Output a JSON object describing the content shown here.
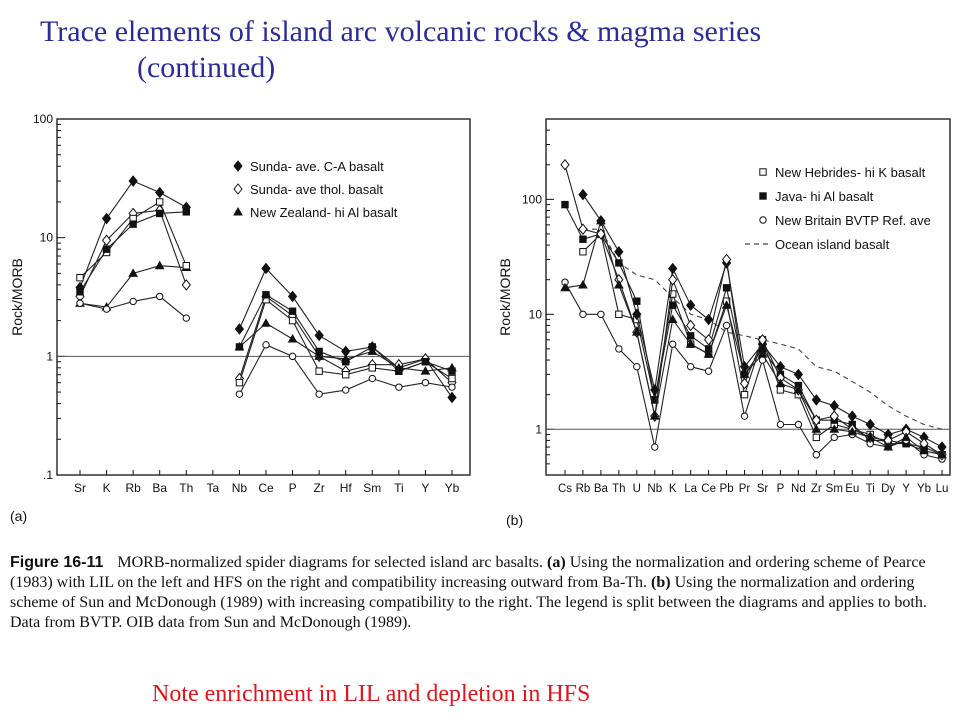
{
  "slide": {
    "title_line1": "Trace elements of island arc volcanic rocks & magma series",
    "title_line2": "(continued)",
    "note": "Note enrichment in LIL and depletion in HFS"
  },
  "caption": {
    "figure_label": "Figure 16-11",
    "intro": "MORB-normalized spider diagrams for selected island arc basalts.",
    "part_a_label": "(a)",
    "part_a_text": "Using the normalization and ordering scheme of Pearce (1983) with LIL on the left and HFS on the right and compatibility increasing outward from Ba-Th.",
    "part_b_label": "(b)",
    "part_b_text": "Using the normalization and ordering scheme of Sun and McDonough (1989) with increasing compatibility to the right. The legend is split between the diagrams and applies to both. Data from BVTP. OIB data from Sun and McDonough (1989)."
  },
  "colors": {
    "title": "#2b2b9b",
    "note": "#e0141c",
    "ink": "#111111"
  },
  "chart_data": [
    {
      "type": "line",
      "panel_label": "(a)",
      "ylabel": "Rock/MORB",
      "yscale": "log",
      "ylim": [
        0.1,
        100
      ],
      "yticks": [
        0.1,
        1,
        10,
        100
      ],
      "ytick_labels": [
        ".1",
        "1",
        "10",
        "100"
      ],
      "reference_line": 1,
      "categories": [
        "Sr",
        "K",
        "Rb",
        "Ba",
        "Th",
        "Ta",
        "Nb",
        "Ce",
        "P",
        "Zr",
        "Hf",
        "Sm",
        "Ti",
        "Y",
        "Yb"
      ],
      "legend_position": "top-right",
      "legend": [
        {
          "label": "Sunda- ave. C-A basalt",
          "marker": "diamond-filled"
        },
        {
          "label": "Sunda- ave thol. basalt",
          "marker": "diamond-open"
        },
        {
          "label": "New Zealand- hi Al basalt",
          "marker": "triangle-filled"
        }
      ],
      "series": [
        {
          "marker": "diamond-filled",
          "values": [
            3.8,
            14.5,
            30,
            24,
            18,
            null,
            1.7,
            5.5,
            3.2,
            1.5,
            1.1,
            1.2,
            0.8,
            0.95,
            0.45
          ]
        },
        {
          "marker": "diamond-open",
          "values": [
            3.2,
            9.5,
            16,
            17,
            4,
            null,
            0.65,
            3.2,
            2.2,
            1.0,
            0.75,
            0.85,
            0.85,
            0.95,
            0.6
          ]
        },
        {
          "marker": "triangle-filled",
          "values": [
            2.8,
            2.6,
            5,
            5.8,
            5.6,
            null,
            1.2,
            1.9,
            1.4,
            1.0,
            0.95,
            1.1,
            0.8,
            0.75,
            0.8
          ]
        },
        {
          "marker": "square-open",
          "values": [
            4.6,
            7.5,
            14.5,
            20,
            5.8,
            null,
            0.6,
            3.0,
            2.0,
            0.75,
            0.7,
            0.8,
            0.75,
            0.9,
            0.65
          ]
        },
        {
          "marker": "square-filled",
          "values": [
            3.5,
            8.0,
            13,
            16,
            16.5,
            null,
            1.2,
            3.3,
            2.4,
            1.1,
            0.9,
            1.2,
            0.75,
            0.9,
            0.75
          ]
        },
        {
          "marker": "circle-open",
          "values": [
            2.8,
            2.5,
            2.9,
            3.2,
            2.1,
            null,
            0.48,
            1.25,
            1.0,
            0.48,
            0.52,
            0.65,
            0.55,
            0.6,
            0.55
          ]
        }
      ]
    },
    {
      "type": "line",
      "panel_label": "(b)",
      "ylabel": "Rock/MORB",
      "yscale": "log",
      "ylim": [
        0.4,
        500
      ],
      "yticks": [
        1,
        10,
        100
      ],
      "ytick_labels": [
        "1",
        "10",
        "100"
      ],
      "reference_line": 1,
      "categories": [
        "Cs",
        "Rb",
        "Ba",
        "Th",
        "U",
        "Nb",
        "K",
        "La",
        "Ce",
        "Pb",
        "Pr",
        "Sr",
        "P",
        "Nd",
        "Zr",
        "Sm",
        "Eu",
        "Ti",
        "Dy",
        "Y",
        "Yb",
        "Lu"
      ],
      "legend_position": "top-right",
      "legend": [
        {
          "label": "New Hebrides- hi K basalt",
          "marker": "square-open"
        },
        {
          "label": "Java- hi Al basalt",
          "marker": "square-filled"
        },
        {
          "label": "New Britain BVTP Ref. ave",
          "marker": "circle-open"
        },
        {
          "label": "Ocean island basalt",
          "marker": "dashed-line"
        }
      ],
      "series": [
        {
          "marker": "dashed-line",
          "values": [
            null,
            55,
            55,
            28,
            22,
            20,
            14,
            10,
            9,
            7,
            6.5,
            6,
            5.5,
            5,
            3.5,
            3.2,
            2.6,
            2.1,
            1.6,
            1.3,
            1.1,
            1.0
          ]
        },
        {
          "marker": "square-open",
          "values": [
            null,
            35,
            50,
            10,
            9,
            1.8,
            15,
            5.5,
            4.5,
            13,
            2.0,
            6.0,
            2.2,
            2.0,
            0.85,
            1.1,
            1.0,
            0.9,
            0.75,
            0.75,
            0.65,
            0.6
          ]
        },
        {
          "marker": "square-filled",
          "values": [
            90,
            45,
            50,
            28,
            13,
            1.8,
            12,
            6.5,
            5.0,
            17,
            3.0,
            5.0,
            3.0,
            2.4,
            1.2,
            1.2,
            1.1,
            0.8,
            0.8,
            0.75,
            0.7,
            0.6
          ]
        },
        {
          "marker": "circle-open",
          "values": [
            19,
            10,
            10,
            5,
            3.5,
            0.7,
            5.5,
            3.5,
            3.2,
            8,
            1.3,
            4.0,
            1.1,
            1.1,
            0.6,
            0.85,
            0.9,
            0.75,
            0.7,
            0.8,
            0.6,
            0.55
          ]
        },
        {
          "marker": "diamond-filled",
          "values": [
            null,
            110,
            65,
            35,
            10,
            2.2,
            25,
            12,
            9,
            28,
            3.5,
            5.5,
            3.5,
            3.0,
            1.8,
            1.6,
            1.3,
            1.1,
            0.9,
            1.0,
            0.85,
            0.7
          ]
        },
        {
          "marker": "diamond-open",
          "values": [
            200,
            55,
            50,
            20,
            7,
            1.3,
            20,
            8,
            6,
            30,
            2.5,
            6.0,
            2.8,
            2.2,
            1.2,
            1.3,
            1.0,
            0.85,
            0.8,
            0.95,
            0.75,
            0.6
          ]
        },
        {
          "marker": "triangle-filled",
          "values": [
            17,
            18,
            65,
            18,
            7,
            1.3,
            9,
            5.5,
            4.5,
            12,
            3.0,
            4.5,
            2.5,
            2.2,
            1.0,
            1.0,
            0.95,
            0.85,
            0.7,
            0.85,
            0.65,
            0.6
          ]
        }
      ]
    }
  ]
}
